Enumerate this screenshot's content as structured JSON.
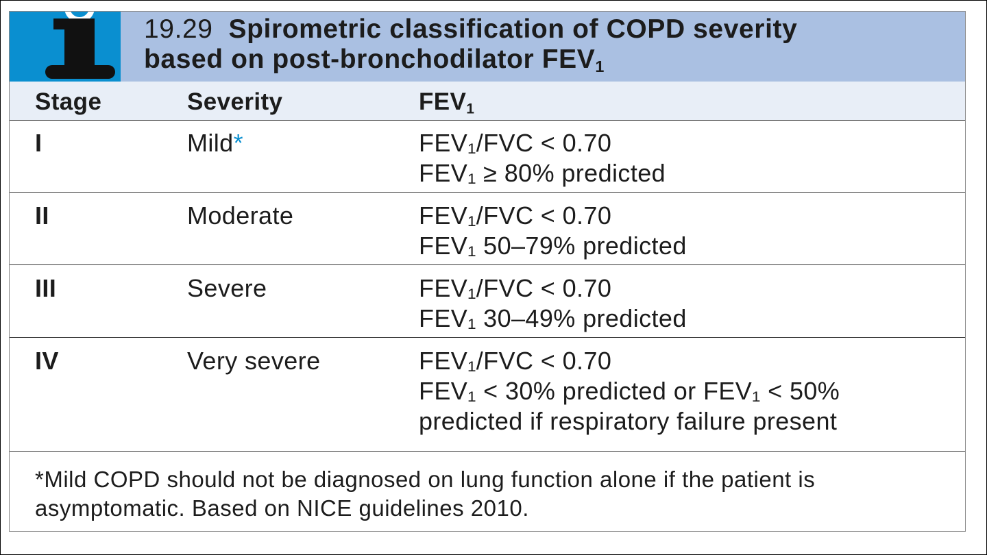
{
  "box": {
    "number": "19.29",
    "title_line1": "Spirometric classification of COPD severity",
    "title_line2": "based on post-bronchodilator FEV",
    "title_sub": "1"
  },
  "table": {
    "headers": [
      "Stage",
      "Severity",
      "FEV"
    ],
    "header_sub": "1",
    "rows": [
      {
        "stage": "I",
        "severity": "Mild",
        "asterisk": "*",
        "line1": "FEV₁/FVC < 0.70",
        "line2": "FEV₁ ≥ 80% predicted"
      },
      {
        "stage": "II",
        "severity": "Moderate",
        "line1": "FEV₁/FVC < 0.70",
        "line2": "FEV₁ 50–79% predicted"
      },
      {
        "stage": "III",
        "severity": "Severe",
        "line1": "FEV₁/FVC < 0.70",
        "line2": "FEV₁ 30–49% predicted"
      },
      {
        "stage": "IV",
        "severity": "Very severe",
        "line1": "FEV₁/FVC < 0.70",
        "line2": "FEV₁ < 30% predicted or FEV₁ < 50%",
        "line3": "predicted if respiratory failure present"
      }
    ]
  },
  "footnote": "*Mild COPD should not be diagnosed on lung function alone if the patient is asymptomatic. Based on NICE guidelines 2010.",
  "colors": {
    "tab_blue": "#0a8fd0",
    "title_bg": "#aac0e2",
    "header_bg": "#e8eef7"
  }
}
